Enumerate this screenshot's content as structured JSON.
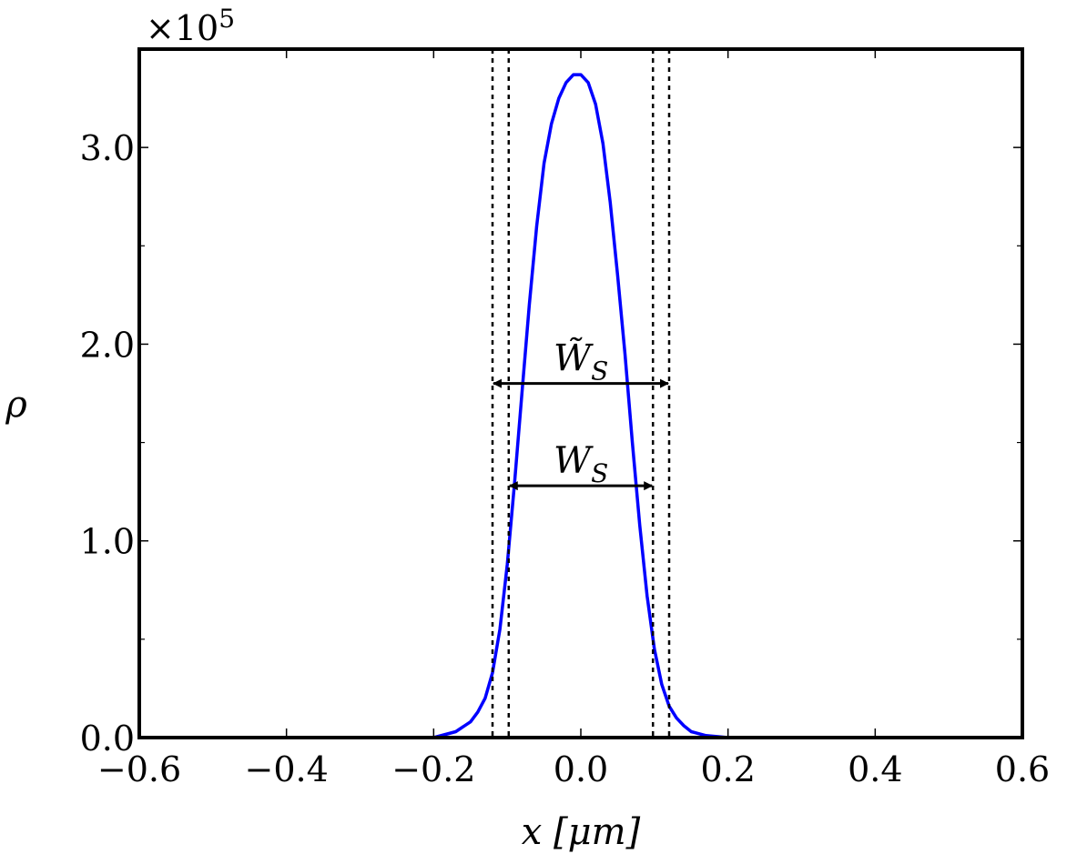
{
  "chart_data": {
    "type": "line",
    "xlabel": "x [μm]",
    "ylabel": "ρ",
    "y_multiplier": "×10",
    "y_multiplier_exp": "5",
    "xlim": [
      -0.6,
      0.6
    ],
    "ylim": [
      0,
      3.5
    ],
    "x_ticks": [
      -0.6,
      -0.4,
      -0.2,
      0.0,
      0.2,
      0.4,
      0.6
    ],
    "x_tick_labels": [
      "−0.6",
      "−0.4",
      "−0.2",
      "0.0",
      "0.2",
      "0.4",
      "0.6"
    ],
    "y_ticks": [
      0,
      1,
      2,
      3
    ],
    "y_tick_labels": [
      "0.0",
      "1.0",
      "2.0",
      "3.0"
    ],
    "y_minor_ticks": [
      0.5,
      1.5,
      2.5
    ],
    "grid": false,
    "series": [
      {
        "color": "#0000ff",
        "x": [
          -0.2,
          -0.17,
          -0.15,
          -0.14,
          -0.13,
          -0.12,
          -0.11,
          -0.1,
          -0.09,
          -0.08,
          -0.07,
          -0.06,
          -0.05,
          -0.04,
          -0.03,
          -0.02,
          -0.01,
          0.0,
          0.01,
          0.02,
          0.03,
          0.04,
          0.05,
          0.06,
          0.07,
          0.08,
          0.09,
          0.1,
          0.11,
          0.12,
          0.13,
          0.14,
          0.15,
          0.17,
          0.2
        ],
        "y": [
          0.0,
          0.03,
          0.08,
          0.13,
          0.2,
          0.33,
          0.55,
          0.88,
          1.3,
          1.75,
          2.2,
          2.6,
          2.92,
          3.12,
          3.25,
          3.33,
          3.37,
          3.37,
          3.33,
          3.22,
          3.02,
          2.72,
          2.35,
          1.95,
          1.5,
          1.08,
          0.72,
          0.45,
          0.27,
          0.16,
          0.1,
          0.06,
          0.03,
          0.01,
          0.0
        ]
      }
    ],
    "vlines": [
      {
        "x": -0.12,
        "style": "dotted"
      },
      {
        "x": -0.098,
        "style": "dotted"
      },
      {
        "x": 0.098,
        "style": "dotted"
      },
      {
        "x": 0.12,
        "style": "dotted"
      }
    ],
    "annotations": [
      {
        "text": "W̃",
        "subscript": "S",
        "x_from": -0.12,
        "x_to": 0.12,
        "y": 1.8
      },
      {
        "text": "W",
        "subscript": "S",
        "x_from": -0.098,
        "x_to": 0.098,
        "y": 1.28
      }
    ]
  }
}
